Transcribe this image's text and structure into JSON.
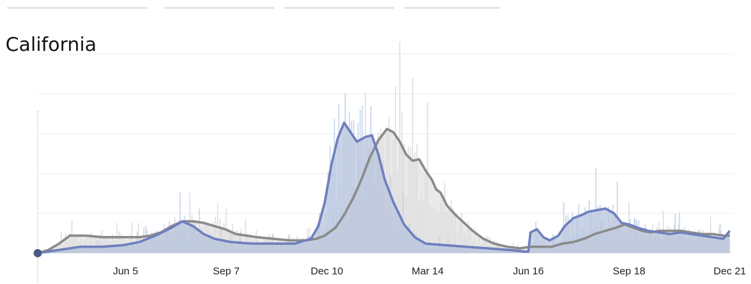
{
  "title": "California",
  "chart_data": {
    "type": "line",
    "title": "California",
    "xlabel": "",
    "ylabel": "",
    "x_tick_labels": [
      "Jun 5",
      "Sep 7",
      "Dec 10",
      "Mar 14",
      "Jun 16",
      "Sep 18",
      "Dec 21"
    ],
    "x_tick_index": [
      82,
      176,
      270,
      364,
      458,
      552,
      646
    ],
    "x_range": [
      0,
      646
    ],
    "ylim": [
      0,
      100
    ],
    "grid": true,
    "legend": "none",
    "colors": {
      "cases_line": "#6f7fbd",
      "cases_fill": "#b9c6de",
      "cases_bars": "#bdd0e6",
      "deaths_line": "#8a8a8a",
      "deaths_fill": "#d9d9d9",
      "deaths_bars": "#dcdcdc",
      "marker": "#4a5a82"
    },
    "series": [
      {
        "key": "cases",
        "points": [
          [
            0,
            0
          ],
          [
            20,
            2
          ],
          [
            40,
            4
          ],
          [
            60,
            4
          ],
          [
            80,
            5
          ],
          [
            95,
            7
          ],
          [
            110,
            11
          ],
          [
            125,
            16
          ],
          [
            135,
            20
          ],
          [
            145,
            17
          ],
          [
            155,
            12
          ],
          [
            165,
            9
          ],
          [
            180,
            7
          ],
          [
            200,
            6
          ],
          [
            220,
            6
          ],
          [
            240,
            6
          ],
          [
            255,
            9
          ],
          [
            262,
            17
          ],
          [
            268,
            32
          ],
          [
            274,
            55
          ],
          [
            280,
            72
          ],
          [
            286,
            82
          ],
          [
            292,
            76
          ],
          [
            298,
            70
          ],
          [
            306,
            73
          ],
          [
            312,
            74
          ],
          [
            318,
            62
          ],
          [
            324,
            46
          ],
          [
            332,
            32
          ],
          [
            342,
            18
          ],
          [
            352,
            10
          ],
          [
            362,
            6
          ],
          [
            380,
            5
          ],
          [
            400,
            4
          ],
          [
            420,
            3
          ],
          [
            440,
            2
          ],
          [
            455,
            1
          ],
          [
            458,
            1
          ],
          [
            460,
            13
          ],
          [
            466,
            15
          ],
          [
            472,
            10
          ],
          [
            478,
            8
          ],
          [
            486,
            11
          ],
          [
            492,
            17
          ],
          [
            500,
            22
          ],
          [
            508,
            24
          ],
          [
            514,
            26
          ],
          [
            522,
            27
          ],
          [
            530,
            28
          ],
          [
            538,
            25
          ],
          [
            545,
            19
          ],
          [
            552,
            18
          ],
          [
            560,
            16
          ],
          [
            570,
            14
          ],
          [
            580,
            13
          ],
          [
            590,
            12
          ],
          [
            600,
            13
          ],
          [
            610,
            12
          ],
          [
            620,
            11
          ],
          [
            630,
            10
          ],
          [
            640,
            9
          ],
          [
            646,
            14
          ]
        ]
      },
      {
        "key": "deaths",
        "points": [
          [
            0,
            0
          ],
          [
            10,
            2
          ],
          [
            20,
            6
          ],
          [
            30,
            11
          ],
          [
            45,
            11
          ],
          [
            60,
            10
          ],
          [
            80,
            10
          ],
          [
            95,
            10
          ],
          [
            105,
            11
          ],
          [
            115,
            13
          ],
          [
            125,
            17
          ],
          [
            135,
            20
          ],
          [
            145,
            20
          ],
          [
            155,
            19
          ],
          [
            165,
            17
          ],
          [
            175,
            15
          ],
          [
            185,
            12
          ],
          [
            195,
            11
          ],
          [
            205,
            10
          ],
          [
            220,
            9
          ],
          [
            235,
            8
          ],
          [
            250,
            8
          ],
          [
            260,
            9
          ],
          [
            268,
            11
          ],
          [
            278,
            16
          ],
          [
            286,
            24
          ],
          [
            294,
            34
          ],
          [
            302,
            46
          ],
          [
            310,
            60
          ],
          [
            318,
            71
          ],
          [
            326,
            78
          ],
          [
            332,
            76
          ],
          [
            338,
            70
          ],
          [
            344,
            62
          ],
          [
            350,
            58
          ],
          [
            356,
            59
          ],
          [
            362,
            52
          ],
          [
            368,
            46
          ],
          [
            372,
            40
          ],
          [
            376,
            38
          ],
          [
            382,
            30
          ],
          [
            390,
            24
          ],
          [
            398,
            19
          ],
          [
            406,
            14
          ],
          [
            416,
            9
          ],
          [
            426,
            6
          ],
          [
            438,
            4
          ],
          [
            450,
            3
          ],
          [
            460,
            4
          ],
          [
            472,
            4
          ],
          [
            480,
            4
          ],
          [
            490,
            6
          ],
          [
            500,
            7
          ],
          [
            510,
            9
          ],
          [
            520,
            12
          ],
          [
            530,
            14
          ],
          [
            540,
            16
          ],
          [
            548,
            18
          ],
          [
            556,
            16
          ],
          [
            564,
            14
          ],
          [
            572,
            13
          ],
          [
            580,
            14
          ],
          [
            590,
            14
          ],
          [
            600,
            14
          ],
          [
            610,
            13
          ],
          [
            620,
            12
          ],
          [
            630,
            12
          ],
          [
            640,
            11
          ],
          [
            646,
            11
          ]
        ]
      }
    ]
  }
}
